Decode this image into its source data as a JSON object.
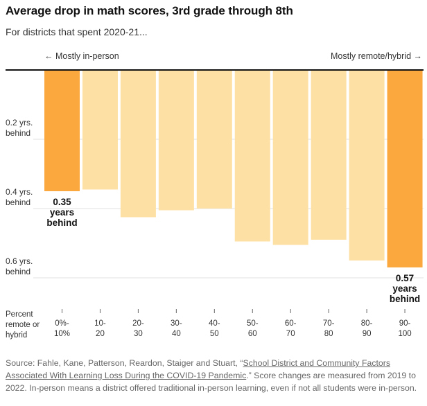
{
  "title": "Average drop in math scores, 3rd grade through 8th",
  "subtitle": "For districts that spent 2020-21...",
  "chart_data": {
    "type": "bar",
    "orientation": "vertical-down",
    "left_label": "← Mostly in-person",
    "right_label": "Mostly remote/hybrid →",
    "xlabel_lines": [
      "Percent",
      "remote or",
      "hybrid"
    ],
    "categories": [
      [
        "0%-",
        "10%"
      ],
      [
        "10-",
        "20"
      ],
      [
        "20-",
        "30"
      ],
      [
        "30-",
        "40"
      ],
      [
        "40-",
        "50"
      ],
      [
        "50-",
        "60"
      ],
      [
        "60-",
        "70"
      ],
      [
        "70-",
        "80"
      ],
      [
        "80-",
        "90"
      ],
      [
        "90-",
        "100"
      ]
    ],
    "values": [
      0.35,
      0.345,
      0.425,
      0.405,
      0.4,
      0.495,
      0.505,
      0.49,
      0.55,
      0.57
    ],
    "highlight": [
      true,
      false,
      false,
      false,
      false,
      false,
      false,
      false,
      false,
      true
    ],
    "colors": {
      "highlight": "#fba93f",
      "normal": "#fde0a3"
    },
    "ylim": [
      0,
      0.6
    ],
    "yticks": [
      {
        "value": 0.2,
        "lines": [
          "0.2 yrs.",
          "behind"
        ]
      },
      {
        "value": 0.4,
        "lines": [
          "0.4 yrs.",
          "behind"
        ]
      },
      {
        "value": 0.6,
        "lines": [
          "0.6 yrs.",
          "behind"
        ]
      }
    ],
    "annotations": [
      {
        "index": 0,
        "lines": [
          "0.35",
          "years",
          "behind"
        ]
      },
      {
        "index": 9,
        "lines": [
          "0.57",
          "years",
          "behind"
        ]
      }
    ]
  },
  "source": {
    "prefix": "Source: Fahle, Kane, Patterson, Reardon, Staiger and Stuart, “",
    "link_text": "School District and Community Factors Associated With Learning Loss During the COVID-19 Pandemic",
    "suffix": ".” Score changes are measured from 2019 to 2022. In-person means a district offered traditional in-person learning, even if not all students were in-person."
  }
}
